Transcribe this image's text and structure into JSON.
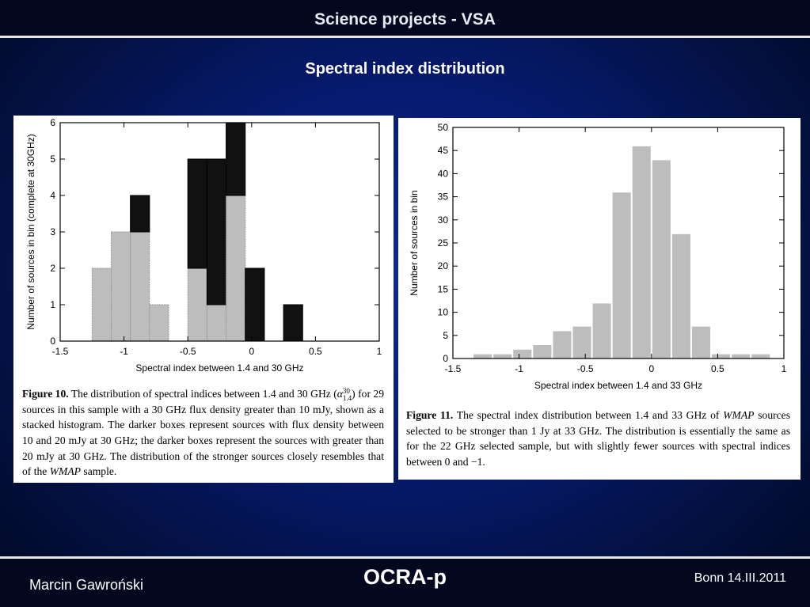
{
  "slide": {
    "title": "Science projects - VSA",
    "subtitle": "Spectral index distribution"
  },
  "footer": {
    "author": "Marcin Gawroński",
    "center": "OCRA-p",
    "right": "Bonn 14.III.2011"
  },
  "captions": {
    "fig10": {
      "label": "Figure 10.",
      "text_a": " The distribution of spectral indices between 1.4 and 30 GHz (",
      "alpha": "α",
      "alpha_sup": "30",
      "alpha_sub": "1.4",
      "text_b": ") for 29 sources in this sample with a 30 GHz flux density greater than 10 mJy, shown as a stacked histogram. The darker boxes represent sources with flux density between 10 and 20 mJy at 30 GHz; the darker boxes represent the sources with greater than 20 mJy at 30 GHz. The distribution of the stronger sources closely resembles that of the ",
      "em": "WMAP",
      "text_c": " sample."
    },
    "fig11": {
      "label": "Figure 11.",
      "text_a": " The spectral index distribution between 1.4 and 33 GHz of ",
      "em": "WMAP",
      "text_b": " sources selected to be stronger than 1 Jy at 33 GHz. The distribution is essentially the same as for the 22 GHz selected sample, but with slightly fewer sources with spectral indices between 0 and −1."
    }
  },
  "chart_data": [
    {
      "type": "bar",
      "stacked": true,
      "xlabel": "Spectral index between 1.4 and 30 GHz",
      "ylabel": "Number of sources in bin (complete at 30GHz)",
      "xlim": [
        -1.5,
        1
      ],
      "ylim": [
        0,
        6
      ],
      "xticks": [
        "-1.5",
        "-1",
        "-0.5",
        "0",
        "0.5",
        "1"
      ],
      "yticks": [
        "0",
        "1",
        "2",
        "3",
        "4",
        "5",
        "6"
      ],
      "bin_width": 0.15,
      "bins": [
        {
          "center": -1.175,
          "gray": 2,
          "black": 0
        },
        {
          "center": -1.025,
          "gray": 3,
          "black": 0
        },
        {
          "center": -0.875,
          "gray": 3,
          "black": 1
        },
        {
          "center": -0.725,
          "gray": 1,
          "black": 0
        },
        {
          "center": -0.425,
          "gray": 2,
          "black": 3
        },
        {
          "center": -0.275,
          "gray": 1,
          "black": 4
        },
        {
          "center": -0.125,
          "gray": 4,
          "black": 2
        },
        {
          "center": 0.025,
          "gray": 0,
          "black": 2
        },
        {
          "center": 0.325,
          "gray": 0,
          "black": 1
        }
      ],
      "colors": {
        "gray": "#bdbdbd",
        "black": "#111111"
      },
      "grid": false
    },
    {
      "type": "bar",
      "xlabel": "Spectral index between 1.4 and 33 GHz",
      "ylabel": "Number of sources in bin",
      "xlim": [
        -1.5,
        1
      ],
      "ylim": [
        0,
        50
      ],
      "xticks": [
        "-1.5",
        "-1",
        "-0.5",
        "0",
        "0.5",
        "1"
      ],
      "yticks": [
        "0",
        "5",
        "10",
        "15",
        "20",
        "25",
        "30",
        "35",
        "40",
        "45",
        "50"
      ],
      "bin_width": 0.15,
      "bins": [
        {
          "center": -1.275,
          "value": 1
        },
        {
          "center": -1.125,
          "value": 1
        },
        {
          "center": -0.975,
          "value": 2
        },
        {
          "center": -0.825,
          "value": 3
        },
        {
          "center": -0.675,
          "value": 6
        },
        {
          "center": -0.525,
          "value": 7
        },
        {
          "center": -0.375,
          "value": 12
        },
        {
          "center": -0.225,
          "value": 36
        },
        {
          "center": -0.075,
          "value": 46
        },
        {
          "center": 0.075,
          "value": 43
        },
        {
          "center": 0.225,
          "value": 27
        },
        {
          "center": 0.375,
          "value": 7
        },
        {
          "center": 0.525,
          "value": 1
        },
        {
          "center": 0.675,
          "value": 1
        },
        {
          "center": 0.825,
          "value": 1
        }
      ],
      "colors": {
        "bar": "#bdbdbd"
      },
      "grid": false
    }
  ]
}
